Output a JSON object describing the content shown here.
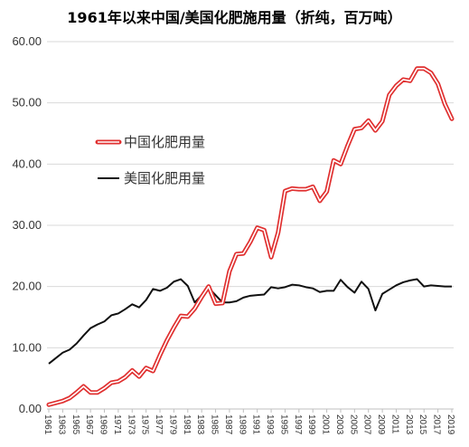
{
  "title": "1961年以来中国/美国化肥施用量（折纯，百万吨）",
  "colors": {
    "china": "#e03030",
    "us": "#111111",
    "grid": "#d9d9d9"
  },
  "chart_data": {
    "type": "line",
    "title": "1961年以来中国/美国化肥施用量（折纯，百万吨）",
    "xlabel": "",
    "ylabel": "",
    "ylim": [
      0,
      60
    ],
    "yticks": [
      "0.00",
      "10.00",
      "20.00",
      "30.00",
      "40.00",
      "50.00",
      "60.00"
    ],
    "grid": "horizontal",
    "legend": "center-left",
    "xticks": [
      "1961",
      "1963",
      "1965",
      "1967",
      "1969",
      "1971",
      "1973",
      "1975",
      "1977",
      "1979",
      "1981",
      "1983",
      "1985",
      "1987",
      "1989",
      "1991",
      "1993",
      "1995",
      "1997",
      "1999",
      "2001",
      "2003",
      "2005",
      "2007",
      "2009",
      "2011",
      "2013",
      "2015",
      "2017",
      "2019"
    ],
    "x": [
      1961,
      1962,
      1963,
      1964,
      1965,
      1966,
      1967,
      1968,
      1969,
      1970,
      1971,
      1972,
      1973,
      1974,
      1975,
      1976,
      1977,
      1978,
      1979,
      1980,
      1981,
      1982,
      1983,
      1984,
      1985,
      1986,
      1987,
      1988,
      1989,
      1990,
      1991,
      1992,
      1993,
      1994,
      1995,
      1996,
      1997,
      1998,
      1999,
      2000,
      2001,
      2002,
      2003,
      2004,
      2005,
      2006,
      2007,
      2008,
      2009,
      2010,
      2011,
      2012,
      2013,
      2014,
      2015,
      2016,
      2017,
      2018,
      2019
    ],
    "series": [
      {
        "name": "中国化肥用量",
        "values": [
          0.7,
          1.0,
          1.3,
          1.8,
          2.7,
          3.7,
          2.7,
          2.7,
          3.4,
          4.3,
          4.5,
          5.2,
          6.3,
          5.3,
          6.7,
          6.2,
          8.8,
          11.2,
          13.3,
          15.2,
          15.1,
          16.4,
          18.3,
          20.0,
          17.2,
          17.3,
          22.5,
          25.3,
          25.4,
          27.3,
          29.6,
          29.2,
          24.8,
          28.8,
          35.6,
          36.0,
          35.9,
          35.9,
          36.3,
          34.0,
          35.5,
          40.6,
          40.0,
          43.0,
          45.7,
          45.9,
          47.1,
          45.5,
          47.0,
          51.3,
          52.8,
          53.8,
          53.6,
          55.6,
          55.6,
          54.9,
          53.1,
          49.8,
          47.4
        ]
      },
      {
        "name": "美国化肥用量",
        "values": [
          7.4,
          8.3,
          9.2,
          9.7,
          10.7,
          12.0,
          13.2,
          13.8,
          14.3,
          15.3,
          15.6,
          16.3,
          17.1,
          16.6,
          17.8,
          19.6,
          19.3,
          19.8,
          20.8,
          21.2,
          20.1,
          17.4,
          18.6,
          19.8,
          18.6,
          17.4,
          17.4,
          17.6,
          18.2,
          18.5,
          18.6,
          18.7,
          19.9,
          19.7,
          19.9,
          20.3,
          20.2,
          19.9,
          19.7,
          19.1,
          19.3,
          19.3,
          21.1,
          19.9,
          19.0,
          20.8,
          19.6,
          16.1,
          18.8,
          19.5,
          20.2,
          20.7,
          21.0,
          21.2,
          20.0,
          20.2,
          20.1,
          20.0,
          20.0
        ]
      }
    ]
  }
}
